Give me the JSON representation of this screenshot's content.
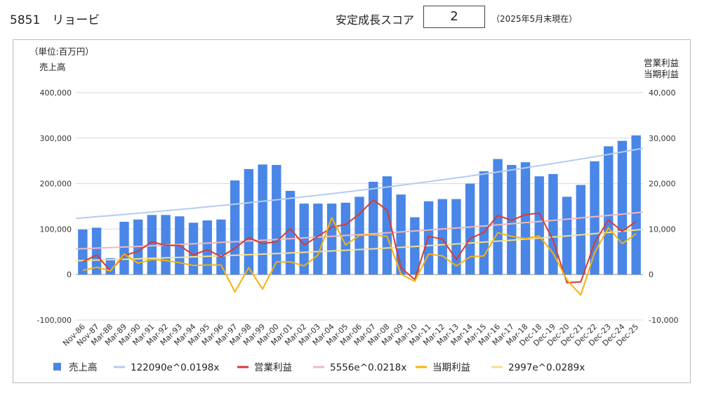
{
  "header": {
    "title": "5851　リョービ",
    "score_label": "安定成長スコア",
    "score_value": "2",
    "score_note": "（2025年5月末現在）"
  },
  "chart_data": {
    "type": "bar",
    "unit_label": "（単位:百万円）",
    "ylabel_left": "売上高",
    "ylabel_right": [
      "営業利益",
      "当期利益"
    ],
    "categories": [
      "Nov-86",
      "Nov-87",
      "Mar-88",
      "Mar-89",
      "Mar-90",
      "Mar-91",
      "Mar-92",
      "Mar-93",
      "Mar-94",
      "Mar-95",
      "Mar-96",
      "Mar-97",
      "Mar-98",
      "Mar-99",
      "Mar-00",
      "Mar-01",
      "Mar-02",
      "Mar-03",
      "Mar-04",
      "Mar-05",
      "Mar-06",
      "Mar-07",
      "Mar-08",
      "Mar-09",
      "Mar-10",
      "Mar-11",
      "Mar-12",
      "Mar-13",
      "Mar-14",
      "Mar-15",
      "Mar-16",
      "Mar-17",
      "Mar-18",
      "Dec-18",
      "Dec-19",
      "Dec-20",
      "Dec-21",
      "Dec-22",
      "Dec-23",
      "Dec-24",
      "Dec-25"
    ],
    "y_left": {
      "min": -100000,
      "max": 400000,
      "ticks": [
        -100000,
        0,
        100000,
        200000,
        300000,
        400000
      ],
      "tick_labels": [
        "-100,000",
        "0",
        "100,000",
        "200,000",
        "300,000",
        "400,000"
      ]
    },
    "y_right": {
      "min": -10000,
      "max": 40000,
      "ticks": [
        -10000,
        0,
        10000,
        20000,
        30000,
        40000
      ],
      "tick_labels": [
        "-10,000",
        "0",
        "10,000",
        "20,000",
        "30,000",
        "40,000"
      ]
    },
    "grid": true,
    "legend_position": "bottom",
    "series": [
      {
        "name": "売上高",
        "kind": "bar",
        "axis": "left",
        "color": "#4a86e8",
        "values": [
          99000,
          103000,
          36000,
          116000,
          121000,
          131000,
          131000,
          128000,
          114000,
          119000,
          121000,
          207000,
          232000,
          242000,
          241000,
          184000,
          156000,
          156000,
          156000,
          158000,
          171000,
          204000,
          216000,
          176000,
          126000,
          161000,
          166000,
          166000,
          200000,
          227000,
          254000,
          241000,
          247000,
          216000,
          221000,
          171000,
          197000,
          249000,
          282000,
          294000,
          306000
        ]
      },
      {
        "name": "122090e^0.0198x",
        "kind": "trend",
        "axis": "left",
        "color": "#b4cdf0",
        "a": 122090,
        "b": 0.0198
      },
      {
        "name": "営業利益",
        "kind": "line",
        "axis": "right",
        "color": "#d63b33",
        "values": [
          2800,
          4300,
          800,
          4200,
          5100,
          7200,
          6400,
          6400,
          4300,
          5500,
          3900,
          5800,
          8100,
          6800,
          7200,
          10100,
          6500,
          8400,
          10400,
          11000,
          13300,
          16400,
          14200,
          1500,
          -1100,
          8400,
          7800,
          3300,
          7900,
          9300,
          13000,
          11900,
          13200,
          13500,
          7500,
          -1800,
          -1600,
          7000,
          12000,
          9500,
          11700
        ]
      },
      {
        "name": "5556e^0.0218x",
        "kind": "trend",
        "axis": "right",
        "color": "#f2b8b8",
        "a": 5556,
        "b": 0.0218
      },
      {
        "name": "当期利益",
        "kind": "line",
        "axis": "right",
        "color": "#f5b30a",
        "values": [
          900,
          1600,
          800,
          4500,
          2500,
          3300,
          3100,
          2600,
          2000,
          2100,
          2100,
          -3800,
          1500,
          -3200,
          2800,
          2800,
          1900,
          4300,
          12500,
          6500,
          8600,
          8700,
          8400,
          100,
          -1500,
          4500,
          4100,
          1900,
          3900,
          4100,
          9200,
          8400,
          7900,
          8500,
          4700,
          -1200,
          -4500,
          4800,
          10300,
          6800,
          9000
        ]
      },
      {
        "name": "2997e^0.0289x",
        "kind": "trend",
        "axis": "right",
        "color": "#f7e08a",
        "a": 2997,
        "b": 0.0289
      }
    ]
  }
}
